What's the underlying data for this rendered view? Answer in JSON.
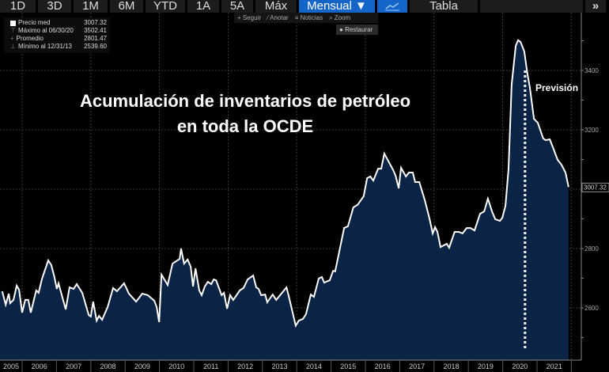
{
  "toolbar": {
    "ranges": [
      "1D",
      "3D",
      "1M",
      "6M",
      "YTD",
      "1A",
      "5A",
      "Máx"
    ],
    "frequency": "Mensual ▼",
    "chart_icon": "line-chart-icon",
    "table": "Tabla",
    "more": "»"
  },
  "legend": {
    "rows": [
      {
        "label": "Precio med",
        "value": "3007.32"
      },
      {
        "label": "Máximo al 06/30/20",
        "value": "3502.41"
      },
      {
        "label": "Promedio",
        "value": "2801.47"
      },
      {
        "label": "Mínimo al 12/31/13",
        "value": "2539.60"
      }
    ]
  },
  "subtools": {
    "follow": "+ Seguir",
    "annotate": "⁄ Anotar",
    "news": "≡ Noticias",
    "zoom": "⌕ Zoom",
    "restore": "Restaurar"
  },
  "annotation": {
    "title_line1": "Acumulación de inventarios de petróleo",
    "title_line2": "en toda la OCDE",
    "forecast": "Previsión"
  },
  "colors": {
    "line": "#ffffff",
    "fill": "#0b2345",
    "accent": "#1565c8"
  },
  "chart_data": {
    "type": "area",
    "x_ticks": [
      "2005",
      "2006",
      "2007",
      "2008",
      "2009",
      "2010",
      "2011",
      "2012",
      "2013",
      "2014",
      "2015",
      "2016",
      "2017",
      "2018",
      "2019",
      "2020",
      "2021"
    ],
    "y_ticks": [
      "3400",
      "3200",
      "2800",
      "2600"
    ],
    "last_value_label": "3007.32",
    "ylim": [
      2430,
      3530
    ],
    "forecast_start": 2020.65,
    "grid": true,
    "x": [
      2005.42,
      2005.52,
      2005.61,
      2005.65,
      2005.75,
      2005.84,
      2005.91,
      2006.0,
      2006.09,
      2006.18,
      2006.25,
      2006.41,
      2006.48,
      2006.58,
      2006.76,
      2006.85,
      2006.94,
      2007.01,
      2007.06,
      2007.27,
      2007.38,
      2007.5,
      2007.59,
      2007.75,
      2007.94,
      2008.0,
      2008.07,
      2008.17,
      2008.24,
      2008.33,
      2008.49,
      2008.65,
      2008.76,
      2008.97,
      2009.11,
      2009.32,
      2009.5,
      2009.66,
      2009.85,
      2009.92,
      2009.99,
      2010.06,
      2010.24,
      2010.38,
      2010.59,
      2010.63,
      2010.72,
      2010.82,
      2010.91,
      2010.98,
      2011.05,
      2011.16,
      2011.23,
      2011.32,
      2011.41,
      2011.51,
      2011.58,
      2011.65,
      2011.81,
      2011.88,
      2011.97,
      2012.06,
      2012.15,
      2012.34,
      2012.45,
      2012.57,
      2012.73,
      2012.82,
      2012.89,
      2012.96,
      2013.08,
      2013.14,
      2013.3,
      2013.4,
      2013.53,
      2013.7,
      2013.76,
      2013.97,
      2014.06,
      2014.18,
      2014.27,
      2014.41,
      2014.5,
      2014.64,
      2014.73,
      2014.8,
      2014.96,
      2015.06,
      2015.12,
      2015.38,
      2015.49,
      2015.65,
      2015.77,
      2015.95,
      2016.05,
      2016.14,
      2016.23,
      2016.37,
      2016.46,
      2016.55,
      2016.81,
      2016.88,
      2016.97,
      2017.04,
      2017.18,
      2017.27,
      2017.38,
      2017.45,
      2017.57,
      2017.73,
      2017.87,
      2017.96,
      2018.03,
      2018.1,
      2018.19,
      2018.37,
      2018.44,
      2018.6,
      2018.72,
      2018.83,
      2018.95,
      2019.06,
      2019.18,
      2019.34,
      2019.46,
      2019.57,
      2019.69,
      2019.78,
      2019.92,
      2019.99,
      2020.08,
      2020.17,
      2020.26,
      2020.38,
      2020.45,
      2020.52,
      2020.63,
      2020.72,
      2020.79,
      2020.91,
      2021.02,
      2021.18,
      2021.25,
      2021.37,
      2021.48,
      2021.6,
      2021.71,
      2021.83,
      2021.92
    ],
    "y": [
      2656,
      2611,
      2648,
      2616,
      2627,
      2675,
      2661,
      2584,
      2627,
      2627,
      2584,
      2659,
      2651,
      2699,
      2760,
      2744,
      2704,
      2664,
      2683,
      2595,
      2669,
      2664,
      2680,
      2651,
      2576,
      2571,
      2621,
      2557,
      2573,
      2560,
      2603,
      2667,
      2656,
      2683,
      2648,
      2621,
      2648,
      2643,
      2624,
      2603,
      2552,
      2712,
      2677,
      2749,
      2765,
      2800,
      2749,
      2763,
      2739,
      2672,
      2733,
      2659,
      2643,
      2672,
      2688,
      2680,
      2696,
      2693,
      2643,
      2651,
      2597,
      2643,
      2627,
      2659,
      2667,
      2696,
      2709,
      2669,
      2664,
      2643,
      2645,
      2619,
      2645,
      2627,
      2645,
      2669,
      2643,
      2540,
      2557,
      2563,
      2579,
      2645,
      2637,
      2699,
      2704,
      2685,
      2693,
      2725,
      2723,
      2869,
      2875,
      2939,
      2947,
      2976,
      3037,
      3043,
      3029,
      3069,
      3069,
      3120,
      3064,
      3045,
      3003,
      3072,
      3043,
      3056,
      3056,
      3024,
      3024,
      2963,
      2899,
      2851,
      2872,
      2856,
      2805,
      2816,
      2803,
      2856,
      2856,
      2851,
      2869,
      2869,
      2861,
      2917,
      2925,
      2968,
      2925,
      2899,
      2893,
      2904,
      2944,
      3069,
      3352,
      3483,
      3502,
      3496,
      3464,
      3389,
      3344,
      3237,
      3224,
      3171,
      3165,
      3168,
      3136,
      3099,
      3083,
      3056,
      3007.32
    ]
  }
}
